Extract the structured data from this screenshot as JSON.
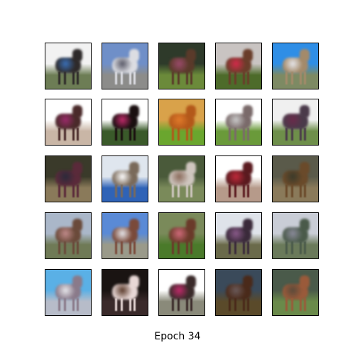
{
  "figure": {
    "caption": "Epoch 34",
    "rows": 5,
    "cols": 5
  },
  "samples": [
    {
      "subject": "horse",
      "sky": "#f2f2f2",
      "ground": "#6d7d55",
      "body": "#2e2a2a",
      "accent": "#3a6fb7"
    },
    {
      "subject": "horse",
      "sky": "#6f8fc8",
      "ground": "#8c8c8a",
      "body": "#dcdde2",
      "accent": "#5a5a68"
    },
    {
      "subject": "horse",
      "sky": "#2e3a2a",
      "ground": "#6b8a3a",
      "body": "#5a3a2a",
      "accent": "#9a4a6a"
    },
    {
      "subject": "horse",
      "sky": "#c9c4c2",
      "ground": "#4d6b2a",
      "body": "#6a3d2a",
      "accent": "#d42a4a"
    },
    {
      "subject": "horse",
      "sky": "#2f8ee6",
      "ground": "#7d8a63",
      "body": "#a48a6a",
      "accent": "#e6e6ea"
    },
    {
      "subject": "horse",
      "sky": "#ffffff",
      "ground": "#c9b6a6",
      "body": "#4a2a2a",
      "accent": "#9a2a6a"
    },
    {
      "subject": "horse",
      "sky": "#ffffff",
      "ground": "#3a5a2a",
      "body": "#1a0f10",
      "accent": "#c02a6a"
    },
    {
      "subject": "horse",
      "sky": "#d9a24a",
      "ground": "#6aa62e",
      "body": "#b3581a",
      "accent": "#e07a2a"
    },
    {
      "subject": "horse",
      "sky": "#ffffff",
      "ground": "#6a9a3a",
      "body": "#7a6a6a",
      "accent": "#c9c9c9"
    },
    {
      "subject": "horse",
      "sky": "#f0f0f0",
      "ground": "#6e8f4a",
      "body": "#4a3a4a",
      "accent": "#6a2a4a"
    },
    {
      "subject": "horse",
      "sky": "#3a3a2a",
      "ground": "#8a7a5a",
      "body": "#5a2a3a",
      "accent": "#2a2a3a"
    },
    {
      "subject": "horse",
      "sky": "#dfe6ee",
      "ground": "#2f63b7",
      "body": "#7a6a5a",
      "accent": "#ffffff"
    },
    {
      "subject": "horse",
      "sky": "#4a5a3a",
      "ground": "#7a8a5a",
      "body": "#cfc6bf",
      "accent": "#8a6a5a"
    },
    {
      "subject": "horse",
      "sky": "#ffffff",
      "ground": "#b69a8a",
      "body": "#5a1a1f",
      "accent": "#c02a3a"
    },
    {
      "subject": "horse",
      "sky": "#5a5a4a",
      "ground": "#8a7a5a",
      "body": "#6a4a2a",
      "accent": "#3a3a2a"
    },
    {
      "subject": "horse",
      "sky": "#aab7c9",
      "ground": "#6f7a56",
      "body": "#6a4a3a",
      "accent": "#c08a8a"
    },
    {
      "subject": "horse",
      "sky": "#5a8ad6",
      "ground": "#9a9a8a",
      "body": "#7a4a3a",
      "accent": "#e6e6ea"
    },
    {
      "subject": "horse",
      "sky": "#7a8a5a",
      "ground": "#4a7a2a",
      "body": "#6a3a2a",
      "accent": "#d06a7a"
    },
    {
      "subject": "horse",
      "sky": "#dfe3ea",
      "ground": "#6a6a4a",
      "body": "#3a2a3a",
      "accent": "#8a5a8a"
    },
    {
      "subject": "horse",
      "sky": "#c9cdd6",
      "ground": "#6a7a5a",
      "body": "#4a5a4a",
      "accent": "#8a8a9a"
    },
    {
      "subject": "horse",
      "sky": "#5ab0e6",
      "ground": "#b7bcc9",
      "body": "#8a7a8a",
      "accent": "#e6e6ea"
    },
    {
      "subject": "horse",
      "sky": "#1a1412",
      "ground": "#3a2a2a",
      "body": "#e8d8d6",
      "accent": "#5a3a2a"
    },
    {
      "subject": "horse",
      "sky": "#ffffff",
      "ground": "#8a8a7a",
      "body": "#3a2a2a",
      "accent": "#c02a6a"
    },
    {
      "subject": "horse",
      "sky": "#3a4a5a",
      "ground": "#5a4a2a",
      "body": "#4a2a1a",
      "accent": "#6a5a5a"
    },
    {
      "subject": "horse",
      "sky": "#4a5a4a",
      "ground": "#6a8a4a",
      "body": "#9a5a3a",
      "accent": "#5a4a3a"
    }
  ]
}
